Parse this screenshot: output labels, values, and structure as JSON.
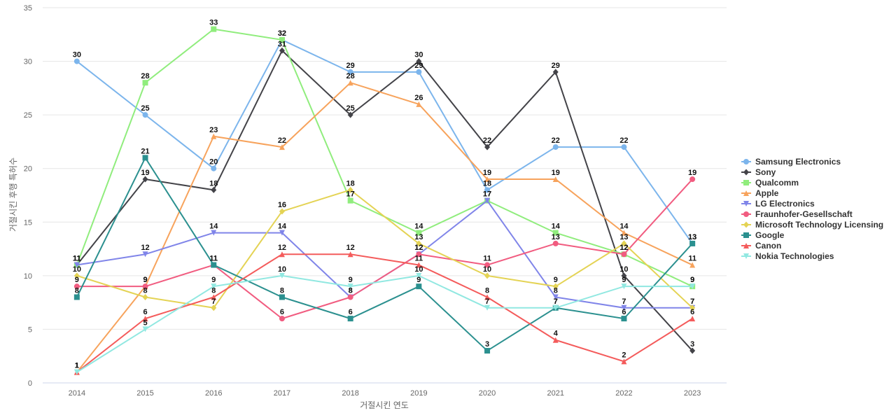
{
  "chart_data": {
    "type": "line",
    "title": "",
    "xlabel": "거절시킨 연도",
    "ylabel": "거절시킨 후행 특허수",
    "ylim": [
      0,
      35
    ],
    "yticks": [
      0,
      5,
      10,
      15,
      20,
      25,
      30,
      35
    ],
    "grid": true,
    "legend_position": "right",
    "categories": [
      "2014",
      "2015",
      "2016",
      "2017",
      "2018",
      "2019",
      "2020",
      "2021",
      "2022",
      "2023"
    ],
    "series": [
      {
        "name": "Samsung Electronics",
        "color": "#7cb5ec",
        "marker": "circle",
        "values": [
          30,
          25,
          20,
          32,
          29,
          29,
          18,
          22,
          22,
          13
        ]
      },
      {
        "name": "Sony",
        "color": "#434348",
        "marker": "diamond",
        "values": [
          11,
          19,
          18,
          31,
          25,
          30,
          22,
          29,
          10,
          3
        ]
      },
      {
        "name": "Qualcomm",
        "color": "#90ed7d",
        "marker": "square",
        "values": [
          11,
          28,
          33,
          32,
          17,
          14,
          17,
          14,
          12,
          9
        ]
      },
      {
        "name": "Apple",
        "color": "#f7a35c",
        "marker": "triangle",
        "values": [
          1,
          9,
          23,
          22,
          28,
          26,
          19,
          19,
          14,
          11
        ]
      },
      {
        "name": "LG Electronics",
        "color": "#8085e9",
        "marker": "triangle-down",
        "values": [
          11,
          12,
          14,
          14,
          8,
          12,
          17,
          8,
          7,
          7
        ]
      },
      {
        "name": "Fraunhofer-Gesellschaft",
        "color": "#f15c80",
        "marker": "circle",
        "values": [
          9,
          9,
          11,
          6,
          8,
          12,
          11,
          13,
          12,
          19
        ]
      },
      {
        "name": "Microsoft Technology Licensing",
        "color": "#e4d354",
        "marker": "diamond",
        "values": [
          10,
          8,
          7,
          16,
          18,
          13,
          10,
          9,
          13,
          7
        ]
      },
      {
        "name": "Google",
        "color": "#2b908f",
        "marker": "square",
        "values": [
          8,
          21,
          11,
          8,
          6,
          9,
          3,
          7,
          6,
          13
        ]
      },
      {
        "name": "Canon",
        "color": "#f45b5b",
        "marker": "triangle",
        "values": [
          1,
          6,
          8,
          12,
          12,
          11,
          8,
          4,
          2,
          6
        ]
      },
      {
        "name": "Nokia Technologies",
        "color": "#91e8e1",
        "marker": "triangle-down",
        "values": [
          1,
          5,
          9,
          10,
          9,
          10,
          7,
          7,
          9,
          9
        ]
      }
    ]
  }
}
